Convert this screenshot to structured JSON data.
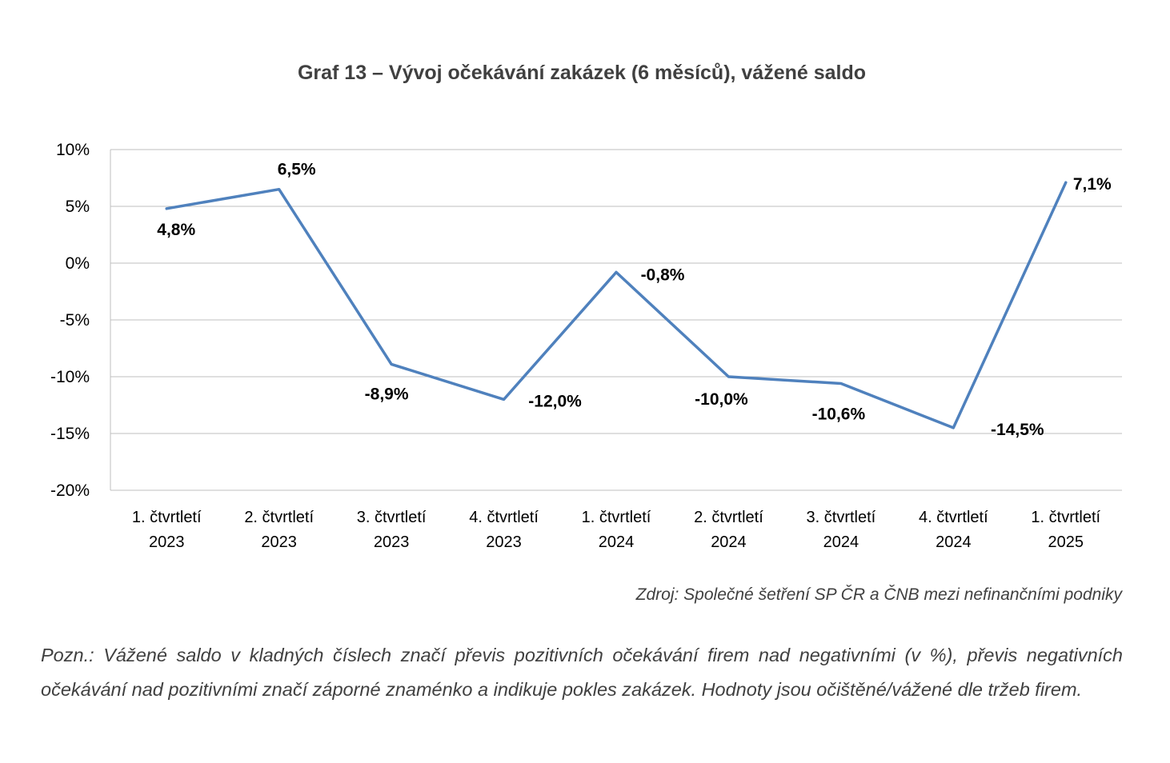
{
  "chart_data": {
    "type": "line",
    "title": "Graf 13 – Vývoj očekávání zakázek (6 měsíců), vážené saldo",
    "categories": [
      [
        "1. čtvrtletí",
        "2023"
      ],
      [
        "2. čtvrtletí",
        "2023"
      ],
      [
        "3. čtvrtletí",
        "2023"
      ],
      [
        "4. čtvrtletí",
        "2023"
      ],
      [
        "1. čtvrtletí",
        "2024"
      ],
      [
        "2. čtvrtletí",
        "2024"
      ],
      [
        "3. čtvrtletí",
        "2024"
      ],
      [
        "4. čtvrtletí",
        "2024"
      ],
      [
        "1. čtvrtletí",
        "2025"
      ]
    ],
    "series": [
      {
        "values": [
          4.8,
          6.5,
          -8.9,
          -12.0,
          -0.8,
          -10.0,
          -10.6,
          -14.5,
          7.1
        ],
        "labels": [
          "4,8%",
          "6,5%",
          "-8,9%",
          "-12,0%",
          "-0,8%",
          "-10,0%",
          "-10,6%",
          "-14,5%",
          "7,1%"
        ],
        "color": "#4f81bd"
      }
    ],
    "ylim": [
      -20,
      10
    ],
    "yticks": [
      10,
      5,
      0,
      -5,
      -10,
      -15,
      -20
    ],
    "ytick_labels": [
      "10%",
      "5%",
      "0%",
      "-5%",
      "-10%",
      "-15%",
      "-20%"
    ],
    "xlabel": "",
    "ylabel": "",
    "grid": true,
    "gridline_color": "#bfbfbf"
  },
  "source": "Zdroj: Společné šetření SP ČR a ČNB mezi nefinančními podniky",
  "note": "Pozn.: Vážené saldo v kladných číslech značí převis pozitivních očekávání firem nad negativními (v %), převis negativních očekávání nad pozitivními značí záporné znaménko a indikuje pokles zakázek. Hodnoty jsou očištěné/vážené dle tržeb firem."
}
